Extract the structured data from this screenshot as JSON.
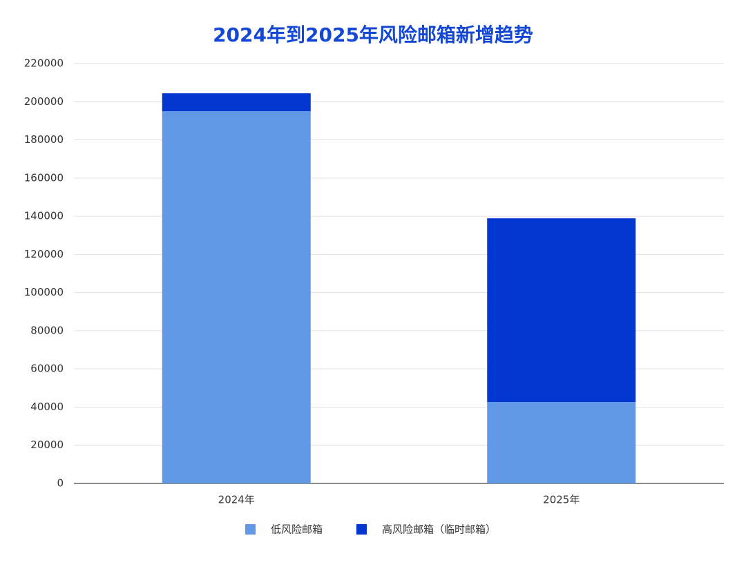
{
  "chart_data": {
    "type": "stacked_bar",
    "title": "2024年到2025年风险邮箱新增趋势",
    "categories": [
      "2024年",
      "2025年"
    ],
    "series": [
      {
        "name": "低风险邮箱",
        "color": "#6199e6",
        "values": [
          195000,
          42700
        ]
      },
      {
        "name": "高风险邮箱（临时邮箱）",
        "color": "#0236d0",
        "values": [
          9400,
          96200
        ]
      }
    ],
    "ylim": [
      0,
      220000
    ],
    "yticks": [
      0,
      20000,
      40000,
      60000,
      80000,
      100000,
      120000,
      140000,
      160000,
      180000,
      200000,
      220000
    ],
    "grid": true,
    "legend": "bottom"
  }
}
